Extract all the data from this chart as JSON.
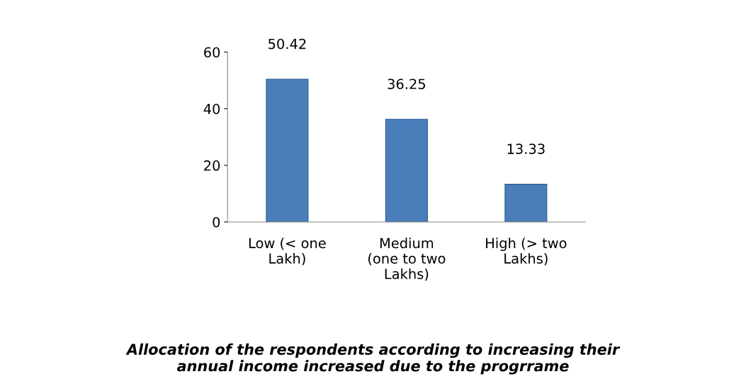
{
  "chart_data": {
    "type": "bar",
    "title": "Allocation of the respondents according to increasing their\nannual income increased due to the progrrame",
    "categories": [
      "Low (< one\nLakh)",
      "Medium\n(one to two\nLakhs)",
      "High (> two\nLakhs)"
    ],
    "values": [
      50.42,
      36.25,
      13.33
    ],
    "color": "#4a7ebb",
    "ylim": [
      0,
      60
    ],
    "yticks": [
      0,
      20,
      40,
      60
    ],
    "grid": false,
    "data_labels": true
  }
}
